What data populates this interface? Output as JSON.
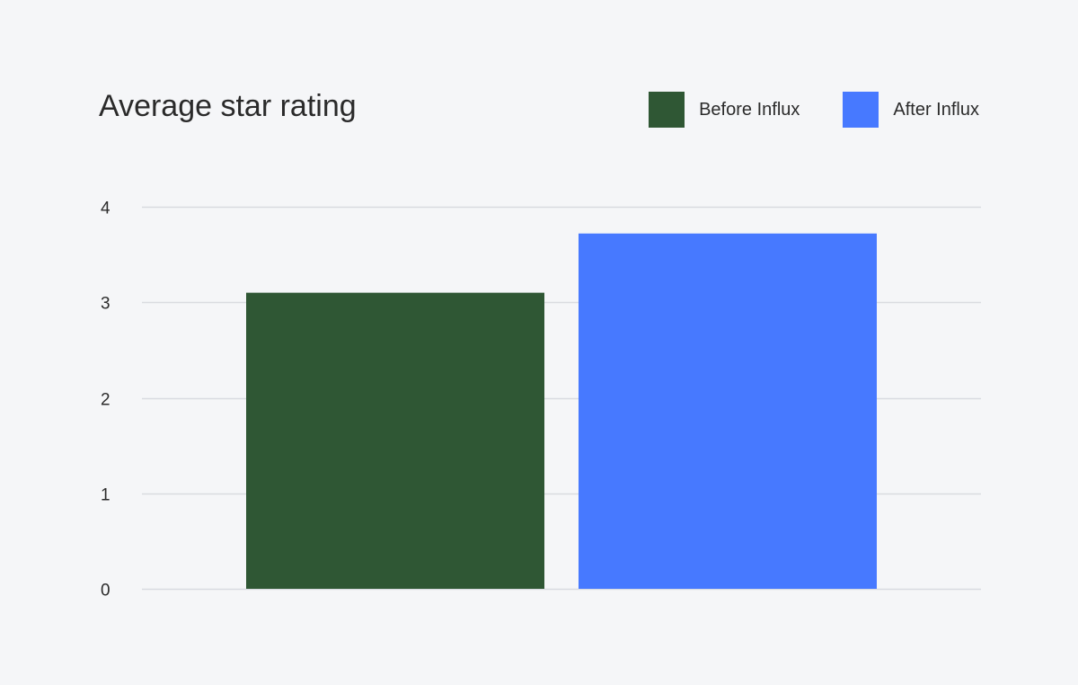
{
  "colors": {
    "background": "#f5f6f8",
    "gridline": "#d9dbe0",
    "before": "#2f5734",
    "after": "#4779ff"
  },
  "chart_data": {
    "type": "bar",
    "title": "Average star rating",
    "xlabel": "",
    "ylabel": "",
    "ylim": [
      0,
      4
    ],
    "yticks": [
      0,
      1,
      2,
      3,
      4
    ],
    "grid": true,
    "legend_position": "top-right",
    "categories": [
      ""
    ],
    "series": [
      {
        "name": "Before Influx",
        "color": "#2f5734",
        "values": [
          3.1
        ]
      },
      {
        "name": "After Influx",
        "color": "#4779ff",
        "values": [
          3.72
        ]
      }
    ]
  }
}
